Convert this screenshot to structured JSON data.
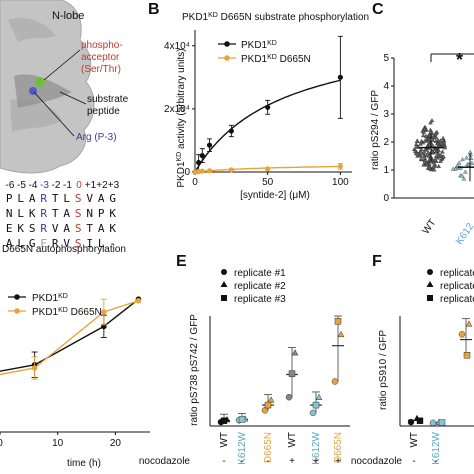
{
  "panelA": {
    "n_lobe": "N-lobe",
    "phospho_acceptor": [
      "phospho-",
      "acceptor",
      "(Ser/Thr)"
    ],
    "substrate_peptide": [
      "substrate",
      "peptide"
    ],
    "arg": "Arg (P-3)",
    "position_numbers": [
      "-6",
      "-5",
      "-4",
      "-3",
      "-2",
      "-1",
      "0",
      "+1",
      "+2",
      "+3"
    ],
    "sequences": [
      [
        "P",
        "L",
        "A",
        "R",
        "T",
        "L",
        "S",
        "V",
        "A",
        "G"
      ],
      [
        "N",
        "L",
        "K",
        "R",
        "T",
        "A",
        "S",
        "N",
        "P",
        "K"
      ],
      [
        "E",
        "K",
        "S",
        "R",
        "V",
        "A",
        "S",
        "T",
        "A",
        "K"
      ],
      [
        "A",
        "L",
        "G",
        "E",
        "R",
        "V",
        "S",
        "I",
        "L",
        "-"
      ]
    ],
    "colors": {
      "red": "#c0392b",
      "blue": "#3b3b9e",
      "gray": "#9a9a9a"
    }
  },
  "panelB": {
    "letter": "B",
    "title": "PKD1KD D665N substrate phosphorylation",
    "title_main": "PKD1",
    "title_sup": "KD",
    "title_rest": " D665N substrate phosphorylation",
    "legend": [
      {
        "name_main": "PKD1",
        "name_sup": "KD",
        "name_rest": "",
        "color": "#111111"
      },
      {
        "name_main": "PKD1",
        "name_sup": "KD",
        "name_rest": " D665N",
        "color": "#e8a33a"
      }
    ],
    "ylabel_main": "PKD1",
    "ylabel_sup": "KD",
    "ylabel_rest": " activity (arbitrary units)",
    "xlabel": "[syntide-2] (μM)",
    "yticks": [
      "0",
      "2x10⁴",
      "4x10⁴"
    ],
    "xticks": [
      "0",
      "50",
      "100"
    ]
  },
  "panelC": {
    "letter": "C",
    "ylabel": "ratio pS294 / GFP",
    "yticks": [
      "0",
      "1",
      "2",
      "3",
      "4",
      "5"
    ],
    "xticks": [
      "WT",
      "K612"
    ],
    "star": "*"
  },
  "panelD": {
    "title": "D665N autophosphorylation",
    "title_prefix": "D665N autophosphorylation",
    "legend": [
      {
        "name_main": "PKD1",
        "name_sup": "KD",
        "name_rest": "",
        "color": "#111111"
      },
      {
        "name_main": "PKD1",
        "name_sup": "KD",
        "name_rest": " D665N",
        "color": "#e8a33a"
      }
    ],
    "xlabel": "time (h)",
    "xticks": [
      "0",
      "10",
      "20"
    ]
  },
  "panelE": {
    "letter": "E",
    "legend": [
      "replicate #1",
      "replicate #2",
      "replicate #3"
    ],
    "ylabel": "ratio pS738 pS742 / GFP",
    "xticks": [
      "WT",
      "K612W",
      "D665N",
      "WT",
      "K612W",
      "D665N"
    ],
    "nocodazole_label": "nocodazole",
    "nocodazole": [
      "-",
      "-",
      "-",
      "+",
      "+",
      "+"
    ]
  },
  "panelF": {
    "letter": "F",
    "legend": [
      "replicate #",
      "replicate #",
      "replicate #"
    ],
    "ylabel": "ratio pS910 / GFP",
    "xticks": [
      "WT",
      "K612W"
    ],
    "nocodazole_label": "nocodazole",
    "nocodazole": [
      "-",
      "-"
    ]
  },
  "chart_data": [
    {
      "type": "line",
      "title": "PKD1KD D665N substrate phosphorylation",
      "xlabel": "[syntide-2] (μM)",
      "ylabel": "PKD1KD activity (arbitrary units)",
      "xlim": [
        0,
        108
      ],
      "ylim": [
        0,
        45000
      ],
      "series": [
        {
          "name": "PKD1KD",
          "color": "#111111",
          "x": [
            0,
            2.5,
            5,
            10,
            25,
            50,
            100
          ],
          "y": [
            0,
            3000,
            5200,
            8500,
            13000,
            20500,
            30000
          ],
          "err": [
            0,
            2500,
            2200,
            2000,
            1800,
            2200,
            13000
          ]
        },
        {
          "name": "PKD1KD D665N",
          "color": "#e8a33a",
          "x": [
            0,
            2.5,
            5,
            10,
            25,
            50,
            100
          ],
          "y": [
            0,
            150,
            250,
            400,
            700,
            1000,
            1800
          ],
          "err": [
            0,
            100,
            150,
            200,
            300,
            400,
            900
          ]
        }
      ]
    },
    {
      "type": "scatter",
      "ylabel": "ratio pS294 / GFP",
      "ylim": [
        0,
        5
      ],
      "categories": [
        "WT",
        "K612"
      ],
      "medians": [
        1.8,
        1.1
      ]
    },
    {
      "type": "line",
      "xlabel": "time (h)",
      "xlim": [
        0,
        26
      ],
      "series": [
        {
          "name": "PKD1KD",
          "color": "#111111",
          "x": [
            6,
            18,
            24
          ],
          "y": [
            0.42,
            0.66,
            0.83
          ],
          "err": [
            0.08,
            0.07,
            0.0
          ]
        },
        {
          "name": "PKD1KD D665N",
          "color": "#e8a33a",
          "x": [
            6,
            18,
            24
          ],
          "y": [
            0.4,
            0.75,
            0.82
          ],
          "err": [
            0.07,
            0.08,
            0.0
          ]
        }
      ]
    },
    {
      "type": "scatter",
      "ylabel": "ratio pS738 pS742 / GFP",
      "categories": [
        "WT -",
        "K612W -",
        "D665N -",
        "WT +",
        "K612W +",
        "D665N +"
      ],
      "means": [
        0.2,
        0.25,
        0.8,
        2.0,
        0.8,
        3.5
      ]
    }
  ]
}
